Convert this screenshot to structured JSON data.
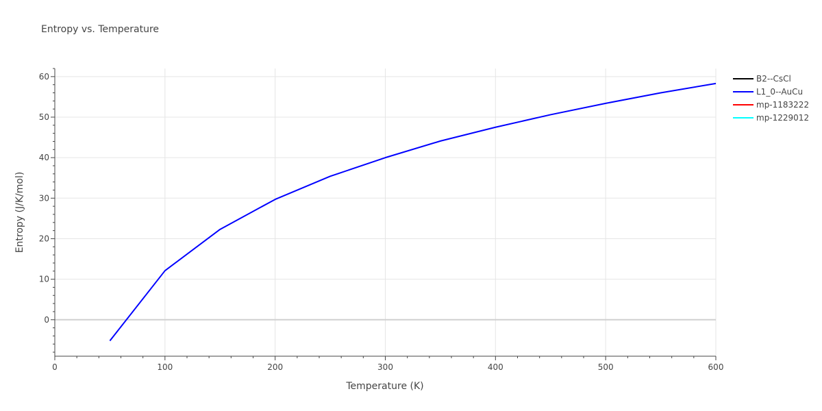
{
  "chart_data": {
    "type": "line",
    "title": "Entropy vs. Temperature",
    "xlabel": "Temperature (K)",
    "ylabel": "Entropy (J/K/mol)",
    "xlim": [
      0,
      600
    ],
    "ylim": [
      -9,
      62
    ],
    "x_ticks": [
      0,
      100,
      200,
      300,
      400,
      500,
      600
    ],
    "y_ticks": [
      0,
      10,
      20,
      30,
      40,
      50,
      60
    ],
    "grid": true,
    "legend_position": "right",
    "series": [
      {
        "name": "B2--CsCl",
        "color": "#000000",
        "x": [],
        "y": []
      },
      {
        "name": "L1_0--AuCu",
        "color": "#0000ff",
        "x": [
          50,
          100,
          150,
          200,
          250,
          300,
          350,
          400,
          450,
          500,
          550,
          600
        ],
        "y": [
          -5.2,
          12.1,
          22.3,
          29.7,
          35.4,
          40.0,
          44.1,
          47.5,
          50.6,
          53.4,
          56.0,
          58.3
        ]
      },
      {
        "name": "mp-1183222",
        "color": "#ff0000",
        "x": [],
        "y": []
      },
      {
        "name": "mp-1229012",
        "color": "#00ffff",
        "x": [],
        "y": []
      }
    ]
  }
}
